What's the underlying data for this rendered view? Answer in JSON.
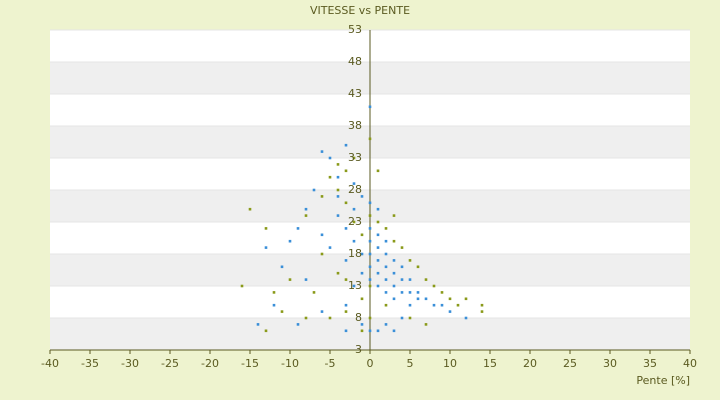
{
  "chart_data": {
    "type": "scatter",
    "title": "VITESSE vs PENTE",
    "x_label": "Pente [%]",
    "xlim": [
      -40,
      40
    ],
    "xticks": [
      -40,
      -35,
      -30,
      -25,
      -20,
      -15,
      -10,
      -5,
      0,
      5,
      10,
      15,
      20,
      25,
      30,
      35,
      40
    ],
    "ylim": [
      3,
      53
    ],
    "yticks": [
      3,
      8,
      13,
      18,
      23,
      28,
      33,
      38,
      43,
      48,
      53
    ],
    "series": [
      {
        "color": "#3a8fd8",
        "x": [
          -3,
          -5,
          -6,
          -4,
          -2,
          -1,
          0,
          1,
          -7,
          -8,
          -9,
          -10,
          -13,
          -11,
          -8,
          -12,
          -4,
          -3,
          -2,
          -1,
          0,
          0,
          0,
          0,
          0,
          1,
          1,
          1,
          1,
          1,
          2,
          2,
          2,
          2,
          2,
          3,
          3,
          3,
          3,
          4,
          4,
          4,
          5,
          5,
          5,
          6,
          6,
          7,
          8,
          9,
          10,
          12,
          -1,
          -2,
          -3,
          -5,
          -6,
          -1,
          0,
          1,
          2,
          3,
          -3,
          0,
          -3,
          -6,
          -9,
          -14,
          4,
          -2,
          -4
        ],
        "values": [
          35,
          33,
          34,
          30,
          29,
          27,
          26,
          25,
          28,
          25,
          22,
          20,
          19,
          16,
          14,
          10,
          24,
          22,
          20,
          18,
          22,
          20,
          18,
          16,
          14,
          21,
          19,
          17,
          15,
          13,
          20,
          18,
          16,
          14,
          12,
          17,
          15,
          13,
          11,
          16,
          14,
          12,
          14,
          12,
          10,
          12,
          11,
          11,
          10,
          10,
          9,
          8,
          15,
          13,
          17,
          19,
          21,
          7,
          6,
          6,
          7,
          6,
          6,
          41,
          10,
          9,
          7,
          7,
          8,
          25,
          27
        ]
      },
      {
        "color": "#8a9a1a",
        "x": [
          -16,
          -15,
          -13,
          -8,
          -6,
          -4,
          -3,
          -2,
          -5,
          -4,
          -3,
          -2,
          -1,
          0,
          1,
          2,
          3,
          4,
          5,
          6,
          7,
          8,
          9,
          10,
          11,
          12,
          14,
          14,
          -7,
          -10,
          -12,
          -5,
          -3,
          -1,
          0,
          2,
          5,
          7,
          -1,
          0,
          -13,
          -8,
          -4,
          -6,
          -3,
          1,
          0,
          3,
          -11
        ],
        "values": [
          13,
          25,
          22,
          24,
          27,
          32,
          31,
          33,
          30,
          28,
          26,
          23,
          21,
          24,
          23,
          22,
          20,
          19,
          17,
          16,
          14,
          13,
          12,
          11,
          10,
          11,
          10,
          9,
          12,
          14,
          12,
          8,
          9,
          11,
          13,
          10,
          8,
          7,
          6,
          8,
          6,
          8,
          15,
          18,
          14,
          31,
          36,
          24,
          9
        ]
      }
    ]
  }
}
